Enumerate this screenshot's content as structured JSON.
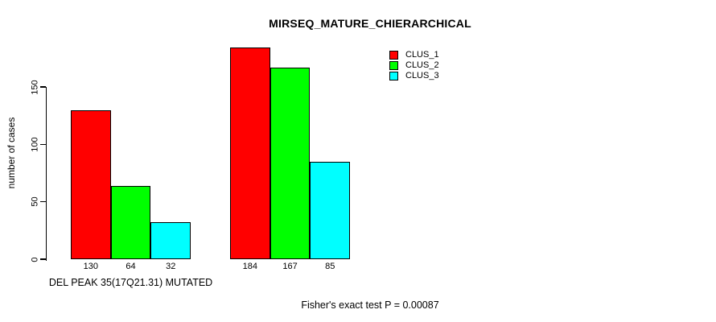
{
  "chart_data": {
    "type": "bar",
    "title": "MIRSEQ_MATURE_CHIERARCHICAL",
    "ylabel": "number of cases",
    "xlabel": "",
    "categories": [
      "DEL PEAK 35(17Q21.31) MUTATED",
      ""
    ],
    "series": [
      {
        "name": "CLUS_1",
        "color": "#ff0000",
        "values": [
          130,
          184
        ]
      },
      {
        "name": "CLUS_2",
        "color": "#00ff00",
        "values": [
          64,
          167
        ]
      },
      {
        "name": "CLUS_3",
        "color": "#00ffff",
        "values": [
          32,
          85
        ]
      }
    ],
    "yticks": [
      0,
      50,
      100,
      150
    ],
    "ylim": [
      0,
      150
    ],
    "bar_value_labels": [
      [
        130,
        64,
        32
      ],
      [
        184,
        167,
        85
      ]
    ],
    "grid": false,
    "legend": {
      "position": "top-right",
      "entries": [
        {
          "label": "CLUS_1",
          "color": "#ff0000"
        },
        {
          "label": "CLUS_2",
          "color": "#00ff00"
        },
        {
          "label": "CLUS_3",
          "color": "#00ffff"
        }
      ]
    },
    "annotation": "Fisher's exact test P = 0.00087",
    "axis_color": "#000000",
    "background_color": "#ffffff"
  }
}
